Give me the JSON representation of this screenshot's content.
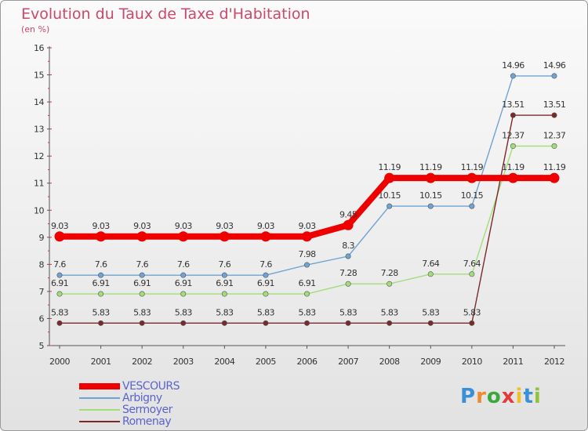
{
  "title": "Evolution du Taux de Taxe d'Habitation",
  "subtitle": "(en %)",
  "logo": {
    "letters": [
      "P",
      "r",
      "o",
      "x",
      "i",
      "t",
      "i"
    ],
    "colors": [
      "#3a8fd6",
      "#f08a2c",
      "#3aa83a",
      "#e23b3b",
      "#f0c02c",
      "#3a8fd6",
      "#8fc43a"
    ]
  },
  "chart_data": {
    "type": "line",
    "title": "Evolution du Taux de Taxe d'Habitation",
    "ylabel": "(en %)",
    "x": [
      "2000",
      "2001",
      "2002",
      "2003",
      "2004",
      "2005",
      "2006",
      "2007",
      "2008",
      "2009",
      "2010",
      "2011",
      "2012"
    ],
    "ylim": [
      5,
      16
    ],
    "yticks": [
      5,
      6,
      7,
      8,
      9,
      10,
      11,
      12,
      13,
      14,
      15,
      16
    ],
    "grid": false,
    "legend_position": "bottom-left",
    "series": [
      {
        "name": "VESCOURS",
        "color": "#ee0000",
        "emphasis": true,
        "values": [
          9.03,
          9.03,
          9.03,
          9.03,
          9.03,
          9.03,
          9.03,
          9.45,
          11.19,
          11.19,
          11.19,
          11.19,
          11.19
        ],
        "labels": [
          "9.03",
          "9.03",
          "9.03",
          "9.03",
          "9.03",
          "9.03",
          "9.03",
          "9.45",
          "11.19",
          "11.19",
          "11.19",
          "11.19",
          "11.19"
        ]
      },
      {
        "name": "Arbigny",
        "color": "#6fa3d3",
        "values": [
          7.6,
          7.6,
          7.6,
          7.6,
          7.6,
          7.6,
          7.98,
          8.3,
          10.15,
          10.15,
          10.15,
          14.96,
          14.96
        ],
        "labels": [
          "7.6",
          "7.6",
          "7.6",
          "7.6",
          "7.6",
          "7.6",
          "7.98",
          "8.3",
          "10.15",
          "10.15",
          "10.15",
          "14.96",
          "14.96"
        ]
      },
      {
        "name": "Sermoyer",
        "color": "#a3dd7a",
        "values": [
          6.91,
          6.91,
          6.91,
          6.91,
          6.91,
          6.91,
          6.91,
          7.28,
          7.28,
          7.64,
          7.64,
          12.37,
          12.37
        ],
        "labels": [
          "6.91",
          "6.91",
          "6.91",
          "6.91",
          "6.91",
          "6.91",
          "6.91",
          "7.28",
          "7.28",
          "7.64",
          "7.64",
          "12.37",
          "12.37"
        ]
      },
      {
        "name": "Romenay",
        "color": "#7a2a2a",
        "values": [
          5.83,
          5.83,
          5.83,
          5.83,
          5.83,
          5.83,
          5.83,
          5.83,
          5.83,
          5.83,
          5.83,
          13.51,
          13.51
        ],
        "labels": [
          "5.83",
          "5.83",
          "5.83",
          "5.83",
          "5.83",
          "5.83",
          "5.83",
          "5.83",
          "5.83",
          "5.83",
          "5.83",
          "13.51",
          "13.51"
        ]
      }
    ]
  }
}
